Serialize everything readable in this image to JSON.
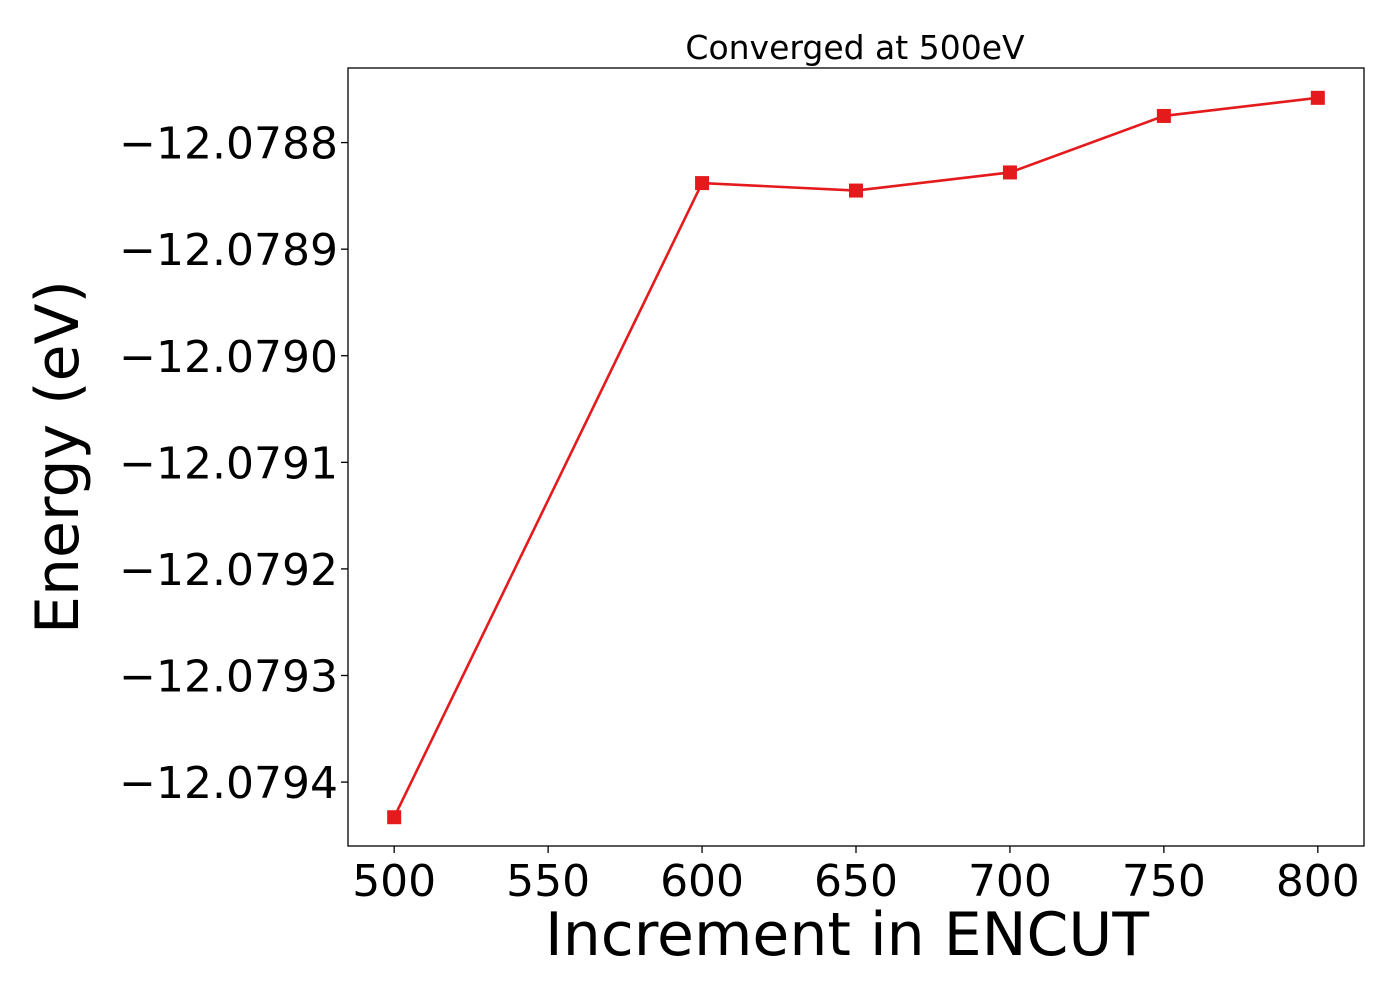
{
  "chart_data": {
    "type": "line",
    "title": "Converged at 500eV",
    "xlabel": "Increment in ENCUT",
    "ylabel": "Energy (eV)",
    "xlim": [
      485,
      815
    ],
    "ylim": [
      -12.07946,
      -12.07873
    ],
    "x_ticks": [
      500,
      550,
      600,
      650,
      700,
      750,
      800
    ],
    "x_tick_labels": [
      "500",
      "550",
      "600",
      "650",
      "700",
      "750",
      "800"
    ],
    "y_ticks": [
      -12.0794,
      -12.0793,
      -12.0792,
      -12.0791,
      -12.079,
      -12.0789,
      -12.0788
    ],
    "y_tick_labels": [
      "−12.0794",
      "−12.0793",
      "−12.0792",
      "−12.0791",
      "−12.0790",
      "−12.0789",
      "−12.0788"
    ],
    "grid": false,
    "series": [
      {
        "color": "#e41a1c",
        "marker": "square",
        "x": [
          500,
          600,
          650,
          700,
          750,
          800
        ],
        "y": [
          -12.079433,
          -12.078838,
          -12.078845,
          -12.078828,
          -12.078775,
          -12.078758
        ]
      }
    ]
  }
}
